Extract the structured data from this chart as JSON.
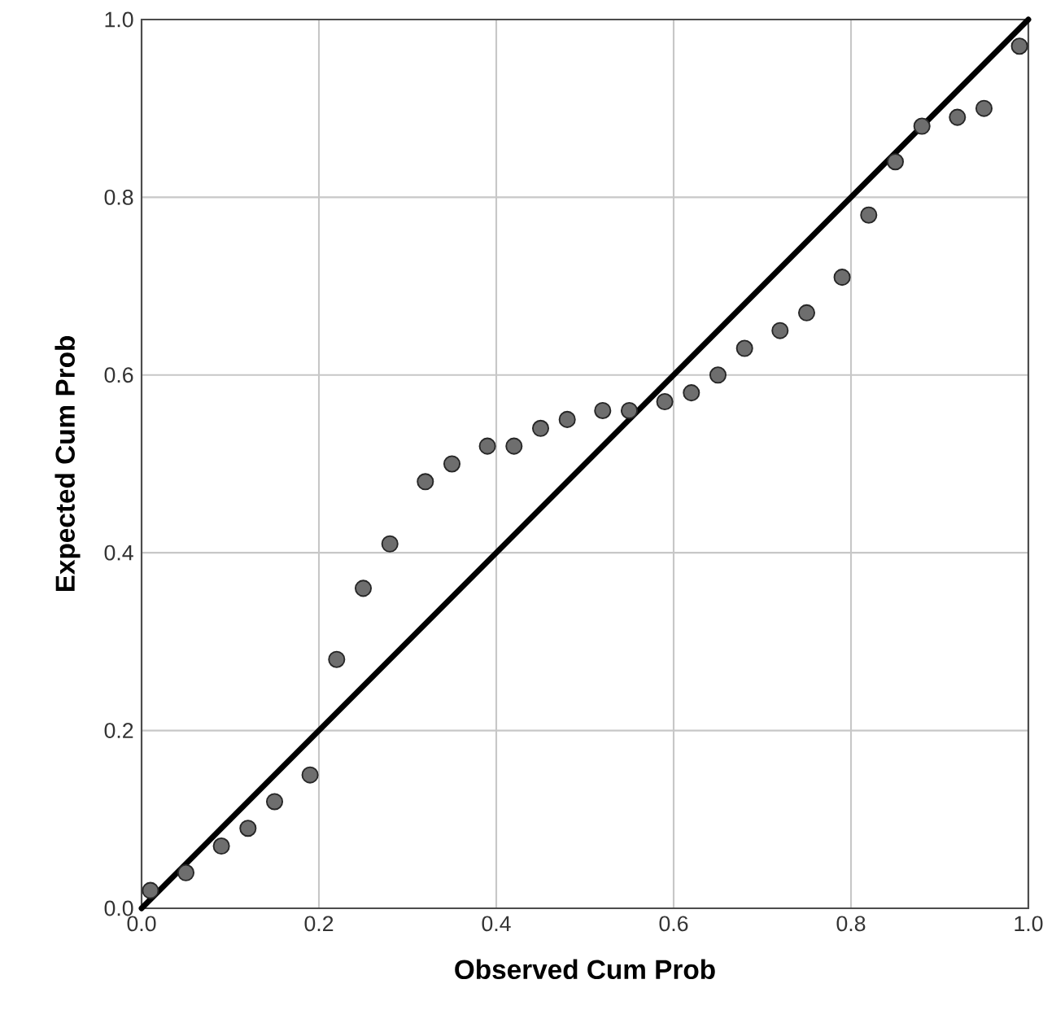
{
  "chart_data": {
    "type": "scatter",
    "xlabel": "Observed Cum Prob",
    "ylabel": "Expected Cum Prob",
    "xlim": [
      0,
      1
    ],
    "ylim": [
      0,
      1
    ],
    "xticks": [
      {
        "value": 0,
        "label": "0.0"
      },
      {
        "value": 0.2,
        "label": "0.2"
      },
      {
        "value": 0.4,
        "label": "0.4"
      },
      {
        "value": 0.6,
        "label": "0.6"
      },
      {
        "value": 0.8,
        "label": "0.8"
      },
      {
        "value": 1,
        "label": "1.0"
      }
    ],
    "yticks": [
      {
        "value": 0,
        "label": "0.0"
      },
      {
        "value": 0.2,
        "label": "0.2"
      },
      {
        "value": 0.4,
        "label": "0.4"
      },
      {
        "value": 0.6,
        "label": "0.6"
      },
      {
        "value": 0.8,
        "label": "0.8"
      },
      {
        "value": 1,
        "label": "1.0"
      }
    ],
    "grid": true,
    "series": [
      {
        "marker": "circle",
        "color": "#6e6e6e",
        "x": [
          0.01,
          0.05,
          0.09,
          0.12,
          0.15,
          0.19,
          0.22,
          0.25,
          0.28,
          0.32,
          0.35,
          0.39,
          0.42,
          0.45,
          0.48,
          0.52,
          0.55,
          0.59,
          0.62,
          0.65,
          0.68,
          0.72,
          0.75,
          0.79,
          0.82,
          0.85,
          0.88,
          0.92,
          0.95,
          0.99
        ],
        "values": [
          0.02,
          0.04,
          0.07,
          0.09,
          0.12,
          0.15,
          0.28,
          0.36,
          0.41,
          0.48,
          0.5,
          0.52,
          0.52,
          0.54,
          0.55,
          0.56,
          0.56,
          0.57,
          0.58,
          0.6,
          0.63,
          0.65,
          0.67,
          0.71,
          0.78,
          0.84,
          0.88,
          0.89,
          0.9,
          0.97
        ]
      },
      {
        "type": "line",
        "marker": "none",
        "color": "#000000",
        "line_style": "solid",
        "x": [
          0,
          1
        ],
        "values": [
          0,
          1
        ]
      }
    ]
  }
}
